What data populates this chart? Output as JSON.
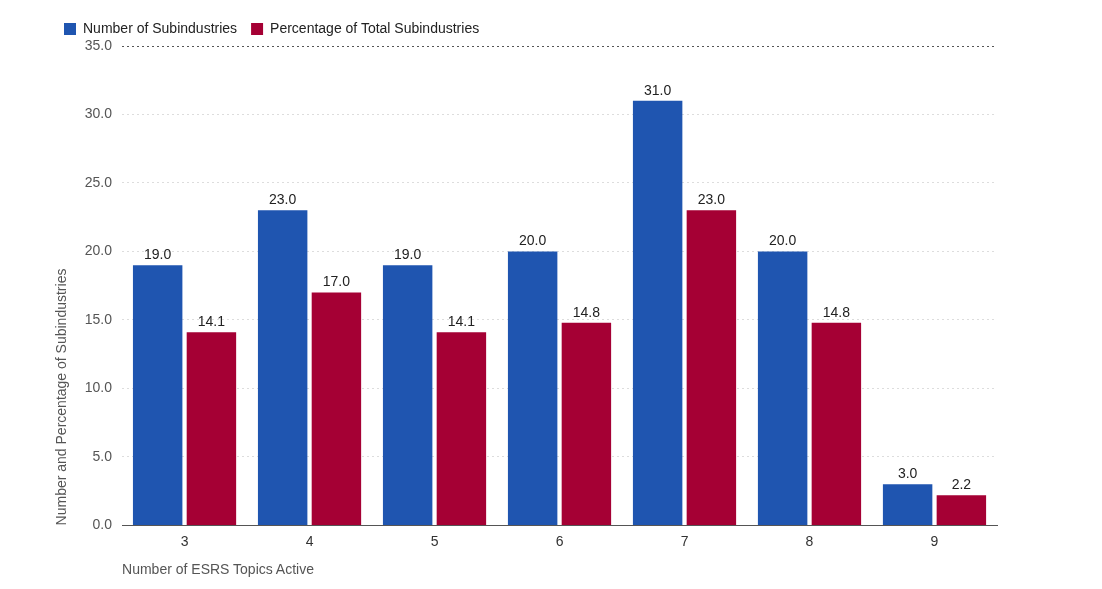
{
  "chart_data": {
    "type": "bar",
    "xlabel": "Number of ESRS Topics Active",
    "ylabel": "Number and Percentage of Subindustries",
    "categories": [
      "3",
      "4",
      "5",
      "6",
      "7",
      "8",
      "9"
    ],
    "series": [
      {
        "name": "Number of Subindustries",
        "color": "#1f55b0",
        "values": [
          19.0,
          23.0,
          19.0,
          20.0,
          31.0,
          20.0,
          3.0
        ],
        "value_labels": [
          "19.0",
          "23.0",
          "19.0",
          "20.0",
          "31.0",
          "20.0",
          "3.0"
        ]
      },
      {
        "name": "Percentage of Total Subindustries",
        "color": "#a50034",
        "values": [
          14.1,
          17.0,
          14.1,
          14.8,
          23.0,
          14.8,
          2.2
        ],
        "value_labels": [
          "14.1",
          "17.0",
          "14.1",
          "14.8",
          "23.0",
          "14.8",
          "2.2"
        ]
      }
    ],
    "ylim": [
      0,
      35
    ],
    "yticks": [
      {
        "value": 0,
        "label": "0.0"
      },
      {
        "value": 5,
        "label": "5.0"
      },
      {
        "value": 10,
        "label": "10.0"
      },
      {
        "value": 15,
        "label": "15.0"
      },
      {
        "value": 20,
        "label": "20.0"
      },
      {
        "value": 25,
        "label": "25.0"
      },
      {
        "value": 30,
        "label": "30.0"
      },
      {
        "value": 35,
        "label": "35.0"
      }
    ],
    "grid": "y",
    "legend": "top left"
  }
}
